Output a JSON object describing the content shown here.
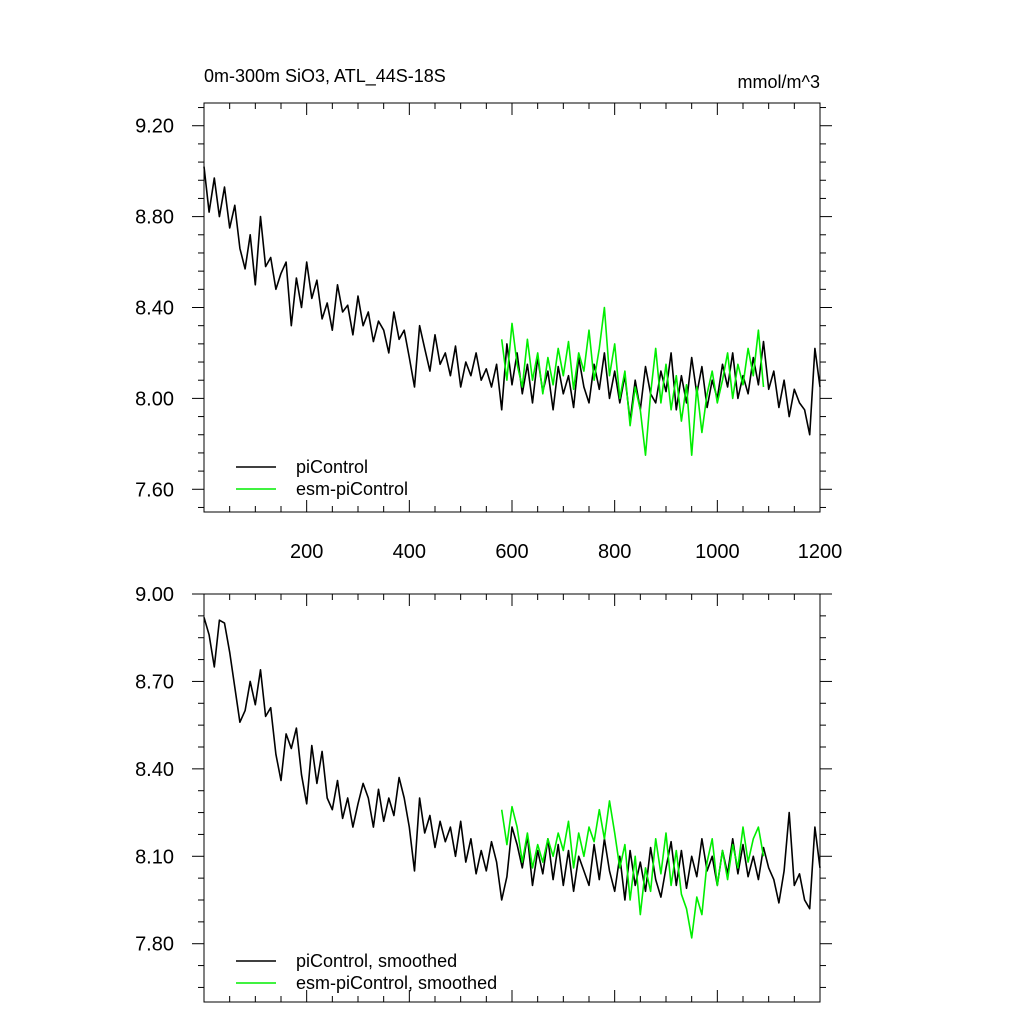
{
  "chart_data": [
    {
      "type": "line",
      "title": "0m-300m SiO3, ATL_44S-18S",
      "units": "mmol/m^3",
      "xlim": [
        0,
        1200
      ],
      "ylim": [
        7.5,
        9.3
      ],
      "xticks": [
        200,
        400,
        600,
        800,
        1000,
        1200
      ],
      "xtick_labels": [
        "200",
        "400",
        "600",
        "800",
        "1000",
        "1200"
      ],
      "yticks": [
        7.6,
        8.0,
        8.4,
        8.8,
        9.2
      ],
      "ytick_labels": [
        "7.60",
        "8.00",
        "8.40",
        "8.80",
        "9.20"
      ],
      "grid": false,
      "legend_position": "bottom-left",
      "series": [
        {
          "name": "piControl",
          "color": "#000000",
          "x": [
            0,
            10,
            20,
            30,
            40,
            50,
            60,
            70,
            80,
            90,
            100,
            110,
            120,
            130,
            140,
            150,
            160,
            170,
            180,
            190,
            200,
            210,
            220,
            230,
            240,
            250,
            260,
            270,
            280,
            290,
            300,
            310,
            320,
            330,
            340,
            350,
            360,
            370,
            380,
            390,
            400,
            410,
            420,
            430,
            440,
            450,
            460,
            470,
            480,
            490,
            500,
            510,
            520,
            530,
            540,
            550,
            560,
            570,
            580,
            590,
            600,
            610,
            620,
            630,
            640,
            650,
            660,
            670,
            680,
            690,
            700,
            710,
            720,
            730,
            740,
            750,
            760,
            770,
            780,
            790,
            800,
            810,
            820,
            830,
            840,
            850,
            860,
            870,
            880,
            890,
            900,
            910,
            920,
            930,
            940,
            950,
            960,
            970,
            980,
            990,
            1000,
            1010,
            1020,
            1030,
            1040,
            1050,
            1060,
            1070,
            1080,
            1090,
            1100,
            1110,
            1120,
            1130,
            1140,
            1150,
            1160,
            1170,
            1180,
            1190,
            1200
          ],
          "values": [
            9.02,
            8.82,
            8.97,
            8.8,
            8.93,
            8.75,
            8.85,
            8.66,
            8.57,
            8.72,
            8.5,
            8.8,
            8.58,
            8.62,
            8.48,
            8.55,
            8.6,
            8.32,
            8.53,
            8.4,
            8.6,
            8.44,
            8.52,
            8.35,
            8.42,
            8.3,
            8.5,
            8.38,
            8.41,
            8.28,
            8.45,
            8.32,
            8.38,
            8.25,
            8.34,
            8.3,
            8.2,
            8.38,
            8.26,
            8.3,
            8.18,
            8.05,
            8.32,
            8.22,
            8.12,
            8.28,
            8.15,
            8.2,
            8.1,
            8.23,
            8.05,
            8.16,
            8.1,
            8.2,
            8.08,
            8.13,
            8.05,
            8.15,
            7.95,
            8.24,
            8.06,
            8.2,
            8.02,
            8.15,
            7.98,
            8.18,
            8.03,
            8.12,
            7.95,
            8.14,
            8.02,
            8.1,
            7.96,
            8.18,
            8.05,
            7.98,
            8.15,
            8.04,
            8.2,
            8.0,
            8.12,
            7.98,
            8.1,
            7.9,
            8.08,
            7.95,
            8.14,
            8.02,
            7.98,
            8.12,
            8.03,
            8.2,
            7.95,
            8.1,
            7.98,
            8.18,
            8.02,
            8.14,
            7.96,
            8.08,
            8.0,
            8.15,
            8.05,
            8.2,
            8.0,
            8.1,
            8.02,
            8.18,
            8.06,
            8.25,
            8.04,
            8.12,
            7.96,
            8.08,
            7.92,
            8.04,
            7.98,
            7.95,
            7.84,
            8.22,
            8.05
          ]
        },
        {
          "name": "esm-piControl",
          "color": "#00ee00",
          "x": [
            580,
            590,
            600,
            610,
            620,
            630,
            640,
            650,
            660,
            670,
            680,
            690,
            700,
            710,
            720,
            730,
            740,
            750,
            760,
            770,
            780,
            790,
            800,
            810,
            820,
            830,
            840,
            850,
            860,
            870,
            880,
            890,
            900,
            910,
            920,
            930,
            940,
            950,
            960,
            970,
            980,
            990,
            1000,
            1010,
            1020,
            1030,
            1040,
            1050,
            1060,
            1070,
            1080,
            1090
          ],
          "values": [
            8.26,
            8.08,
            8.33,
            8.15,
            8.05,
            8.26,
            8.08,
            8.2,
            8.02,
            8.18,
            8.06,
            8.22,
            8.1,
            8.25,
            8.04,
            8.2,
            8.12,
            8.3,
            8.08,
            8.22,
            8.4,
            8.1,
            8.24,
            8.0,
            8.12,
            7.88,
            8.05,
            7.95,
            7.75,
            8.02,
            8.22,
            7.98,
            8.15,
            7.95,
            8.1,
            7.9,
            8.06,
            7.75,
            8.05,
            7.85,
            8.02,
            8.12,
            7.98,
            8.08,
            8.2,
            8.0,
            8.15,
            8.06,
            8.22,
            8.1,
            8.3,
            8.05
          ]
        }
      ]
    },
    {
      "type": "line",
      "xlim": [
        0,
        1200
      ],
      "ylim": [
        7.6,
        9.0
      ],
      "xticks": [
        200,
        400,
        600,
        800,
        1000,
        1200
      ],
      "yticks": [
        7.8,
        8.1,
        8.4,
        8.7,
        9.0
      ],
      "ytick_labels": [
        "7.80",
        "8.10",
        "8.40",
        "8.70",
        "9.00"
      ],
      "grid": false,
      "legend_position": "bottom-left",
      "series": [
        {
          "name": "piControl, smoothed",
          "color": "#000000",
          "x": [
            0,
            10,
            20,
            30,
            40,
            50,
            60,
            70,
            80,
            90,
            100,
            110,
            120,
            130,
            140,
            150,
            160,
            170,
            180,
            190,
            200,
            210,
            220,
            230,
            240,
            250,
            260,
            270,
            280,
            290,
            300,
            310,
            320,
            330,
            340,
            350,
            360,
            370,
            380,
            390,
            400,
            410,
            420,
            430,
            440,
            450,
            460,
            470,
            480,
            490,
            500,
            510,
            520,
            530,
            540,
            550,
            560,
            570,
            580,
            590,
            600,
            610,
            620,
            630,
            640,
            650,
            660,
            670,
            680,
            690,
            700,
            710,
            720,
            730,
            740,
            750,
            760,
            770,
            780,
            790,
            800,
            810,
            820,
            830,
            840,
            850,
            860,
            870,
            880,
            890,
            900,
            910,
            920,
            930,
            940,
            950,
            960,
            970,
            980,
            990,
            1000,
            1010,
            1020,
            1030,
            1040,
            1050,
            1060,
            1070,
            1080,
            1090,
            1100,
            1110,
            1120,
            1130,
            1140,
            1150,
            1160,
            1170,
            1180,
            1190,
            1200
          ],
          "values": [
            8.92,
            8.86,
            8.75,
            8.91,
            8.9,
            8.8,
            8.68,
            8.56,
            8.6,
            8.7,
            8.62,
            8.74,
            8.58,
            8.61,
            8.45,
            8.36,
            8.52,
            8.47,
            8.54,
            8.38,
            8.28,
            8.48,
            8.35,
            8.46,
            8.3,
            8.26,
            8.36,
            8.23,
            8.3,
            8.2,
            8.28,
            8.35,
            8.3,
            8.2,
            8.33,
            8.22,
            8.3,
            8.24,
            8.37,
            8.3,
            8.2,
            8.05,
            8.3,
            8.18,
            8.24,
            8.13,
            8.22,
            8.15,
            8.2,
            8.1,
            8.22,
            8.08,
            8.16,
            8.04,
            8.12,
            8.05,
            8.15,
            8.08,
            7.95,
            8.03,
            8.2,
            8.14,
            8.06,
            8.17,
            8.0,
            8.12,
            8.04,
            8.16,
            8.02,
            8.14,
            8.0,
            8.12,
            7.98,
            8.1,
            8.05,
            8.0,
            8.14,
            8.02,
            8.16,
            8.05,
            7.98,
            8.1,
            7.95,
            8.12,
            8.0,
            8.08,
            7.98,
            8.13,
            8.02,
            7.96,
            8.06,
            8.15,
            8.0,
            8.12,
            7.99,
            8.1,
            8.03,
            8.16,
            8.05,
            8.1,
            8.0,
            8.12,
            8.04,
            8.16,
            8.04,
            8.14,
            8.03,
            8.1,
            8.02,
            8.13,
            8.06,
            8.02,
            7.94,
            8.05,
            8.25,
            8.0,
            8.04,
            7.95,
            7.92,
            8.2,
            8.06
          ]
        },
        {
          "name": "esm-piControl, smoothed",
          "color": "#00ee00",
          "x": [
            580,
            590,
            600,
            610,
            620,
            630,
            640,
            650,
            660,
            670,
            680,
            690,
            700,
            710,
            720,
            730,
            740,
            750,
            760,
            770,
            780,
            790,
            800,
            810,
            820,
            830,
            840,
            850,
            860,
            870,
            880,
            890,
            900,
            910,
            920,
            930,
            940,
            950,
            960,
            970,
            980,
            990,
            1000,
            1010,
            1020,
            1030,
            1040,
            1050,
            1060,
            1070,
            1080,
            1090
          ],
          "values": [
            8.26,
            8.14,
            8.27,
            8.2,
            8.08,
            8.18,
            8.06,
            8.14,
            8.08,
            8.16,
            8.1,
            8.18,
            8.12,
            8.22,
            8.06,
            8.18,
            8.1,
            8.2,
            8.15,
            8.26,
            8.16,
            8.29,
            8.18,
            8.06,
            8.14,
            7.95,
            8.1,
            7.9,
            8.06,
            7.98,
            8.16,
            8.04,
            8.18,
            8.0,
            8.12,
            7.97,
            7.92,
            7.82,
            7.96,
            7.9,
            8.08,
            8.16,
            8.0,
            8.12,
            8.02,
            8.14,
            8.06,
            8.2,
            8.08,
            8.16,
            8.2,
            8.1
          ]
        }
      ]
    }
  ]
}
